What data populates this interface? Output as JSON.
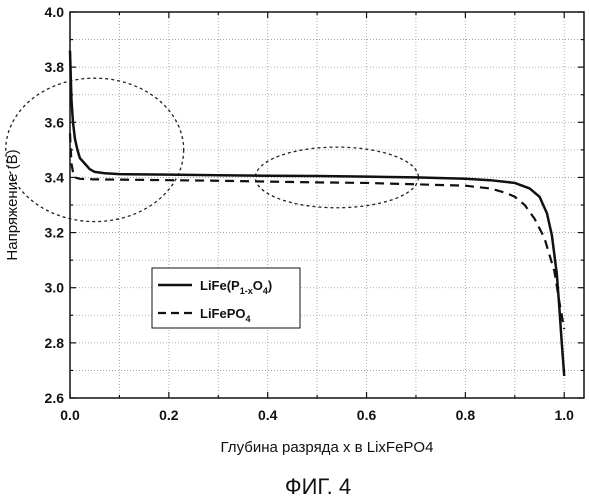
{
  "chart_data": {
    "type": "line",
    "xlabel": "Глубина разряда х в LixFePO4",
    "ylabel": "Напряжение (В)",
    "xlim": [
      0.0,
      1.04
    ],
    "ylim": [
      2.6,
      4.0
    ],
    "xticks": [
      "0.0",
      "0.2",
      "0.4",
      "0.6",
      "0.8",
      "1.0"
    ],
    "yticks": [
      "2.6",
      "2.8",
      "3.0",
      "3.2",
      "3.4",
      "3.6",
      "3.8",
      "4.0"
    ],
    "grid": true,
    "legend_position": "lower-left",
    "series": [
      {
        "name": "LiFe(P1-xO4)",
        "legend_main": "LiFe(P",
        "legend_sub": "1-x",
        "legend_mid": "O",
        "legend_sub2": "4",
        "legend_end": ")",
        "style": "solid",
        "x": [
          0.0,
          0.003,
          0.006,
          0.01,
          0.015,
          0.02,
          0.03,
          0.04,
          0.05,
          0.07,
          0.1,
          0.2,
          0.3,
          0.4,
          0.5,
          0.6,
          0.7,
          0.8,
          0.85,
          0.9,
          0.93,
          0.95,
          0.965,
          0.975,
          0.985,
          0.99,
          0.995,
          1.0
        ],
        "y": [
          3.86,
          3.68,
          3.6,
          3.54,
          3.5,
          3.47,
          3.45,
          3.43,
          3.42,
          3.415,
          3.412,
          3.41,
          3.408,
          3.406,
          3.405,
          3.403,
          3.4,
          3.395,
          3.39,
          3.38,
          3.36,
          3.33,
          3.27,
          3.19,
          3.05,
          2.93,
          2.8,
          2.68
        ]
      },
      {
        "name": "LiFePO4",
        "legend_main": "LiFePO",
        "legend_sub": "4",
        "style": "dashed",
        "x": [
          0.0,
          0.003,
          0.006,
          0.01,
          0.02,
          0.05,
          0.1,
          0.2,
          0.3,
          0.4,
          0.5,
          0.6,
          0.7,
          0.8,
          0.85,
          0.88,
          0.9,
          0.92,
          0.94,
          0.96,
          0.98,
          0.99,
          1.0
        ],
        "y": [
          3.56,
          3.45,
          3.42,
          3.4,
          3.395,
          3.393,
          3.392,
          3.39,
          3.388,
          3.385,
          3.382,
          3.38,
          3.375,
          3.37,
          3.36,
          3.345,
          3.33,
          3.3,
          3.25,
          3.18,
          3.06,
          2.95,
          2.85
        ]
      }
    ],
    "annotations": [
      {
        "type": "dotted-ellipse",
        "cx": 0.05,
        "cy": 3.5,
        "rx_data": 0.18,
        "ry_data": 0.26
      },
      {
        "type": "dotted-ellipse",
        "cx": 0.54,
        "cy": 3.4,
        "rx_data": 0.165,
        "ry_data": 0.11
      }
    ]
  },
  "figure_caption": "ФИГ. 4"
}
